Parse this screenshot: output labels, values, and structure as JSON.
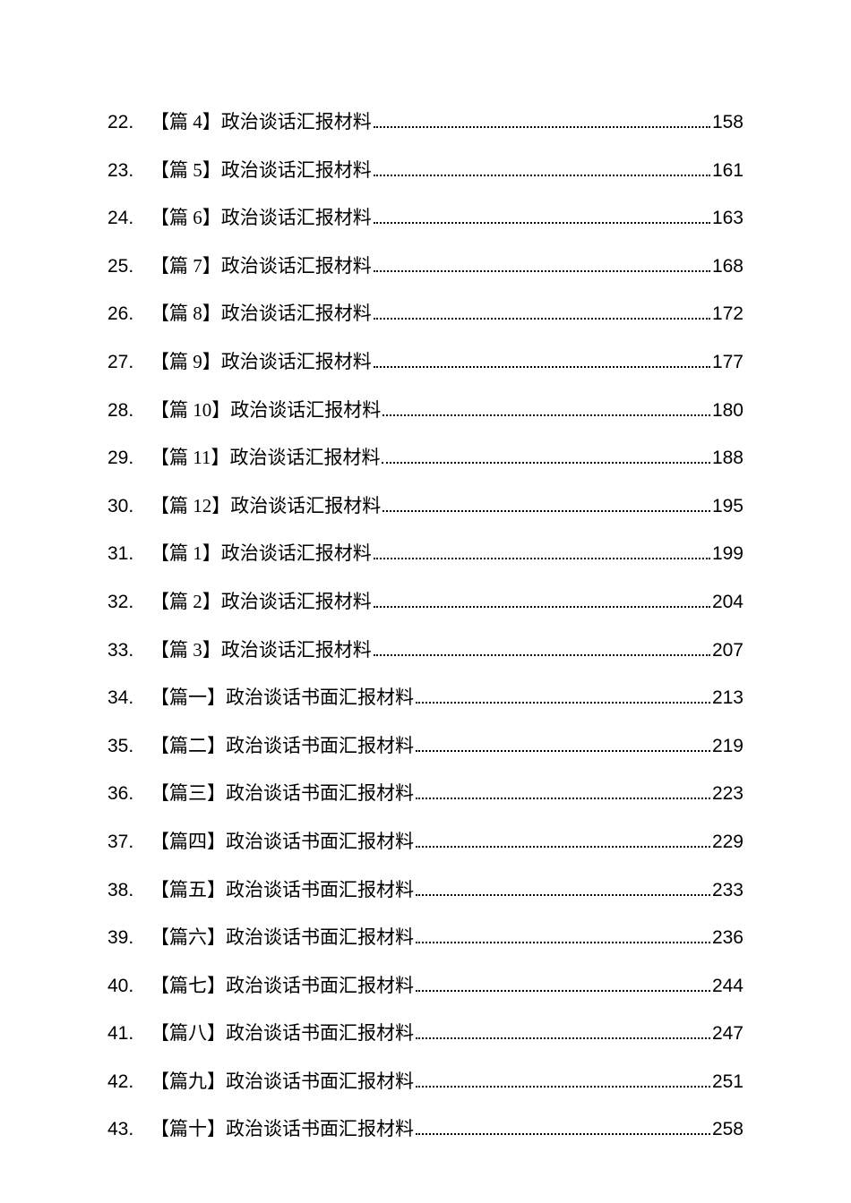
{
  "document": {
    "background_color": "#ffffff",
    "text_color": "#000000",
    "font_family_cjk": "SimSun",
    "font_family_latin": "Arial",
    "font_size": 21,
    "line_spacing": 20
  },
  "toc": {
    "entries": [
      {
        "number": "22.",
        "title": "【篇 4】政治谈话汇报材料",
        "page": "158"
      },
      {
        "number": "23.",
        "title": "【篇 5】政治谈话汇报材料",
        "page": "161"
      },
      {
        "number": "24.",
        "title": "【篇 6】政治谈话汇报材料",
        "page": "163"
      },
      {
        "number": "25.",
        "title": "【篇 7】政治谈话汇报材料",
        "page": "168"
      },
      {
        "number": "26.",
        "title": "【篇 8】政治谈话汇报材料",
        "page": "172"
      },
      {
        "number": "27.",
        "title": "【篇 9】政治谈话汇报材料",
        "page": "177"
      },
      {
        "number": "28.",
        "title": "【篇 10】政治谈话汇报材料",
        "page": "180"
      },
      {
        "number": "29.",
        "title": "【篇 11】政治谈话汇报材料",
        "page": "188"
      },
      {
        "number": "30.",
        "title": "【篇 12】政治谈话汇报材料",
        "page": "195"
      },
      {
        "number": "31.",
        "title": "【篇 1】政治谈话汇报材料",
        "page": "199"
      },
      {
        "number": "32.",
        "title": "【篇 2】政治谈话汇报材料",
        "page": "204"
      },
      {
        "number": "33.",
        "title": "【篇 3】政治谈话汇报材料",
        "page": "207"
      },
      {
        "number": "34.",
        "title": "【篇一】政治谈话书面汇报材料",
        "page": "213"
      },
      {
        "number": "35.",
        "title": "【篇二】政治谈话书面汇报材料",
        "page": "219"
      },
      {
        "number": "36.",
        "title": "【篇三】政治谈话书面汇报材料",
        "page": "223"
      },
      {
        "number": "37.",
        "title": "【篇四】政治谈话书面汇报材料",
        "page": "229"
      },
      {
        "number": "38.",
        "title": "【篇五】政治谈话书面汇报材料",
        "page": "233"
      },
      {
        "number": "39.",
        "title": "【篇六】政治谈话书面汇报材料",
        "page": "236"
      },
      {
        "number": "40.",
        "title": "【篇七】政治谈话书面汇报材料",
        "page": "244"
      },
      {
        "number": "41.",
        "title": "【篇八】政治谈话书面汇报材料",
        "page": "247"
      },
      {
        "number": "42.",
        "title": "【篇九】政治谈话书面汇报材料",
        "page": "251"
      },
      {
        "number": "43.",
        "title": "【篇十】政治谈话书面汇报材料",
        "page": "258"
      }
    ]
  }
}
